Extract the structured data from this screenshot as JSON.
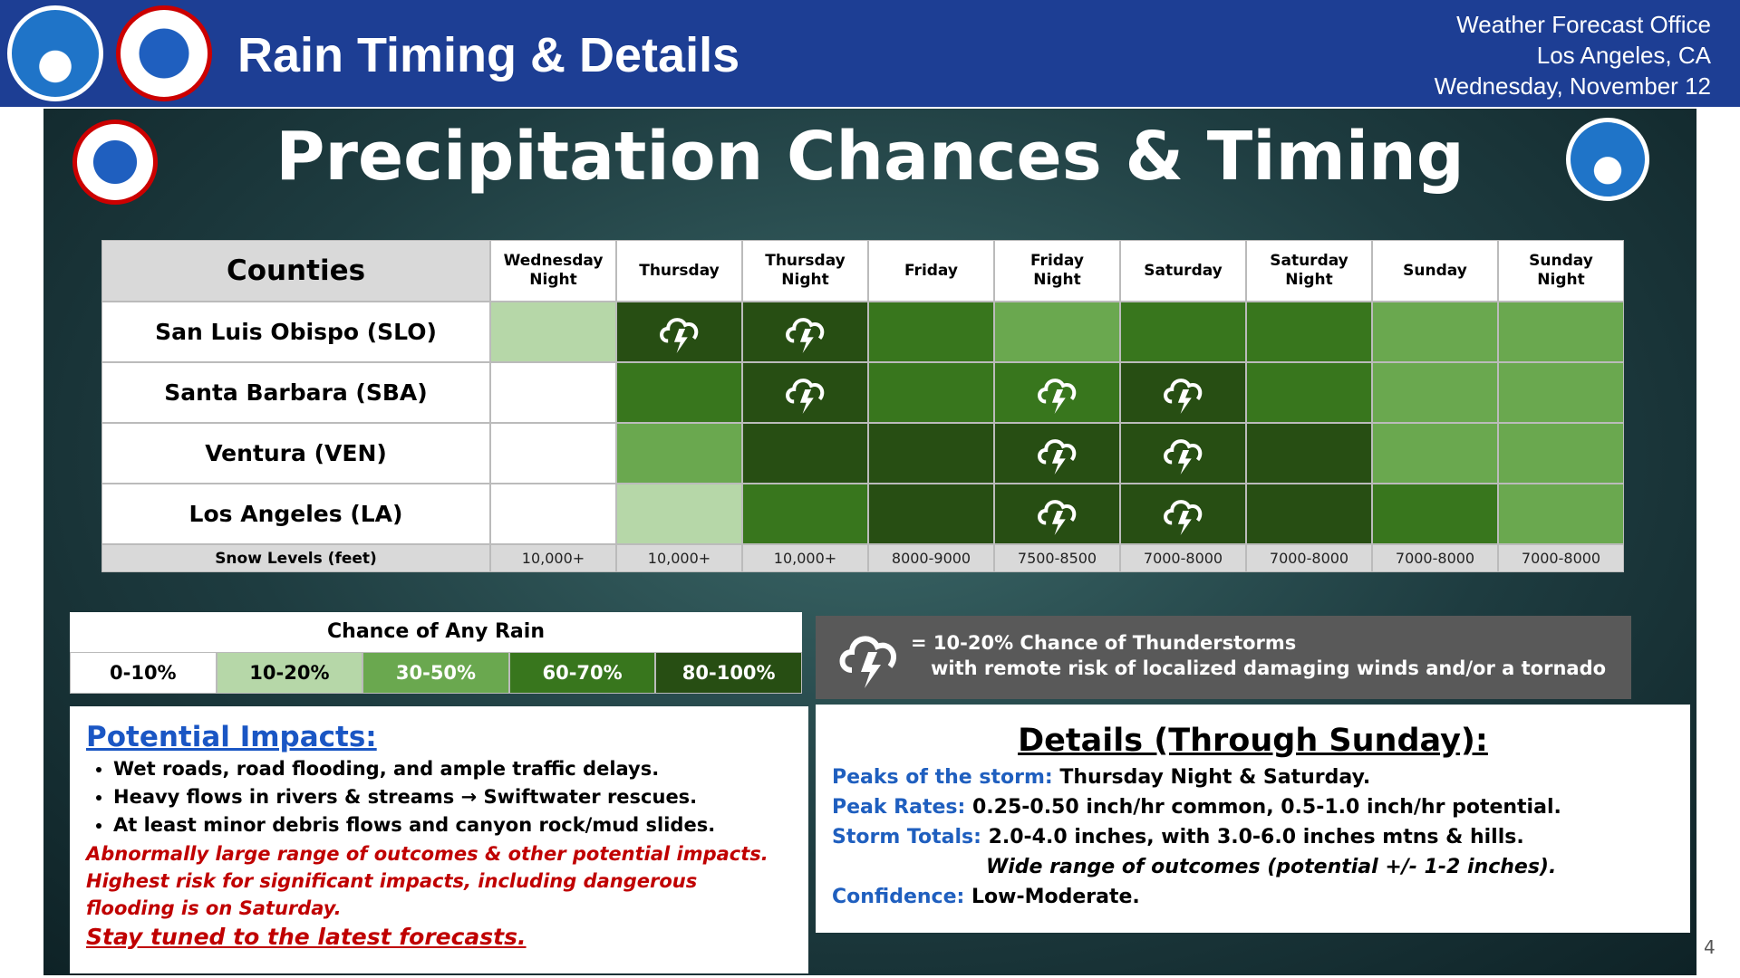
{
  "header": {
    "title": "Rain Timing & Details",
    "office": [
      "Weather Forecast Office",
      "Los Angeles, CA",
      "Wednesday, November 12"
    ]
  },
  "slide_title": "Precipitation Chances & Timing",
  "table": {
    "corner": "Counties",
    "columns": [
      "Wednesday Night",
      "Thursday",
      "Thursday Night",
      "Friday",
      "Friday Night",
      "Saturday",
      "Saturday Night",
      "Sunday",
      "Sunday Night"
    ],
    "rows": [
      {
        "county": "San Luis Obispo (SLO)",
        "levels": [
          1,
          4,
          4,
          3,
          2,
          3,
          3,
          2,
          2
        ],
        "thunder": [
          false,
          true,
          true,
          false,
          false,
          false,
          false,
          false,
          false
        ]
      },
      {
        "county": "Santa Barbara (SBA)",
        "levels": [
          0,
          3,
          4,
          3,
          3,
          4,
          3,
          2,
          2
        ],
        "thunder": [
          false,
          false,
          true,
          false,
          true,
          true,
          false,
          false,
          false
        ]
      },
      {
        "county": "Ventura (VEN)",
        "levels": [
          0,
          2,
          4,
          4,
          4,
          4,
          4,
          2,
          2
        ],
        "thunder": [
          false,
          false,
          false,
          false,
          true,
          true,
          false,
          false,
          false
        ]
      },
      {
        "county": "Los Angeles (LA)",
        "levels": [
          0,
          1,
          3,
          4,
          4,
          4,
          4,
          3,
          2
        ],
        "thunder": [
          false,
          false,
          false,
          false,
          true,
          true,
          false,
          false,
          false
        ]
      }
    ],
    "snow_label": "Snow Levels (feet)",
    "snow_levels": [
      "10,000+",
      "10,000+",
      "10,000+",
      "8000-9000",
      "7500-8500",
      "7000-8000",
      "7000-8000",
      "7000-8000",
      "7000-8000"
    ]
  },
  "legend": {
    "title": "Chance of Any Rain",
    "items": [
      {
        "label": "0-10%",
        "color": "#ffffff",
        "text_color": "#000000"
      },
      {
        "label": "10-20%",
        "color": "#b6d7a8",
        "text_color": "#000000"
      },
      {
        "label": "30-50%",
        "color": "#6aa84f",
        "text_color": "#ffffff"
      },
      {
        "label": "60-70%",
        "color": "#38761d",
        "text_color": "#ffffff"
      },
      {
        "label": "80-100%",
        "color": "#274e13",
        "text_color": "#ffffff"
      }
    ]
  },
  "thunder_note": [
    "= 10-20% Chance of Thunderstorms",
    "with remote risk of localized damaging winds and/or a tornado"
  ],
  "impacts": {
    "heading": "Potential Impacts:",
    "bullets": [
      "Wet roads, road flooding, and ample traffic delays.",
      "Heavy flows in rivers & streams → Swiftwater rescues.",
      "At least minor debris flows and canyon rock/mud slides."
    ],
    "warning": "Abnormally large range of outcomes & other potential impacts. Highest risk for significant impacts, including dangerous flooding is on Saturday.",
    "tuned": "Stay tuned to the latest forecasts."
  },
  "details": {
    "heading": "Details (Through Sunday):",
    "items": [
      {
        "label": "Peaks of the storm:",
        "text": "Thursday Night & Saturday."
      },
      {
        "label": "Peak Rates:",
        "text": "0.25-0.50 inch/hr common, 0.5-1.0 inch/hr potential."
      },
      {
        "label": "Storm Totals:",
        "text": "2.0-4.0 inches, with 3.0-6.0 inches mtns & hills."
      },
      {
        "label": "Confidence:",
        "text": "Low-Moderate."
      }
    ],
    "note": "Wide range of outcomes (potential +/- 1-2 inches)."
  },
  "page_number": "4"
}
